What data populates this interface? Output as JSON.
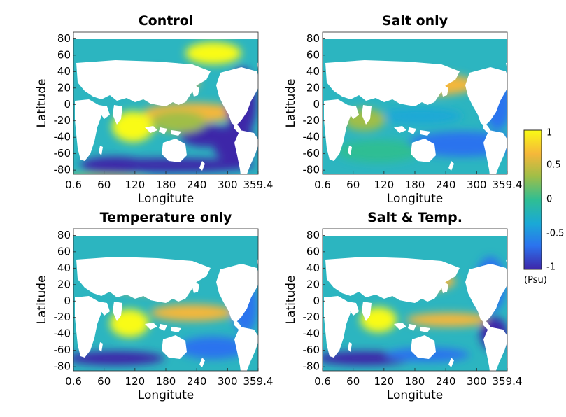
{
  "chart_data": [
    {
      "type": "heatmap",
      "title": "Control",
      "xlabel": "Longitute",
      "ylabel": "Latitude",
      "xlim": [
        0.6,
        359.4
      ],
      "ylim": [
        -85,
        88
      ],
      "xticks": [
        "0.6",
        "60",
        "120",
        "180",
        "240",
        "300",
        "359.4"
      ],
      "yticks": [
        "80",
        "60",
        "40",
        "20",
        "0",
        "-20",
        "-40",
        "-60",
        "-80"
      ]
    },
    {
      "type": "heatmap",
      "title": "Salt only",
      "xlabel": "Longitute",
      "ylabel": "Latitude",
      "xlim": [
        0.6,
        359.4
      ],
      "ylim": [
        -85,
        88
      ],
      "xticks": [
        "0.6",
        "60",
        "120",
        "180",
        "240",
        "300",
        "359.4"
      ],
      "yticks": [
        "80",
        "60",
        "40",
        "20",
        "0",
        "-20",
        "-40",
        "-60",
        "-80"
      ]
    },
    {
      "type": "heatmap",
      "title": "Temperature only",
      "xlabel": "Longitute",
      "ylabel": "Latitude",
      "xlim": [
        0.6,
        359.4
      ],
      "ylim": [
        -85,
        88
      ],
      "xticks": [
        "0.6",
        "60",
        "120",
        "180",
        "240",
        "300",
        "359.4"
      ],
      "yticks": [
        "80",
        "60",
        "40",
        "20",
        "0",
        "-20",
        "-40",
        "-60",
        "-80"
      ]
    },
    {
      "type": "heatmap",
      "title": "Salt & Temp.",
      "xlabel": "Longitute",
      "ylabel": "Latitude",
      "xlim": [
        0.6,
        359.4
      ],
      "ylim": [
        -85,
        88
      ],
      "xticks": [
        "0.6",
        "60",
        "120",
        "180",
        "240",
        "300",
        "359.4"
      ],
      "yticks": [
        "80",
        "60",
        "40",
        "20",
        "0",
        "-20",
        "-40",
        "-60",
        "-80"
      ]
    }
  ],
  "colorbar": {
    "range": [
      -1,
      1
    ],
    "ticks": [
      "1",
      "0.5",
      "0",
      "-0.5",
      "-1"
    ],
    "unit": "(Psu)",
    "colors": [
      "#3e26a8",
      "#2b73ee",
      "#1aa9d6",
      "#2fbe93",
      "#a0be47",
      "#f5b73a",
      "#f9fb15"
    ]
  },
  "style": {
    "ocean_base": "#2cb5c0",
    "land": "#ffffff"
  }
}
